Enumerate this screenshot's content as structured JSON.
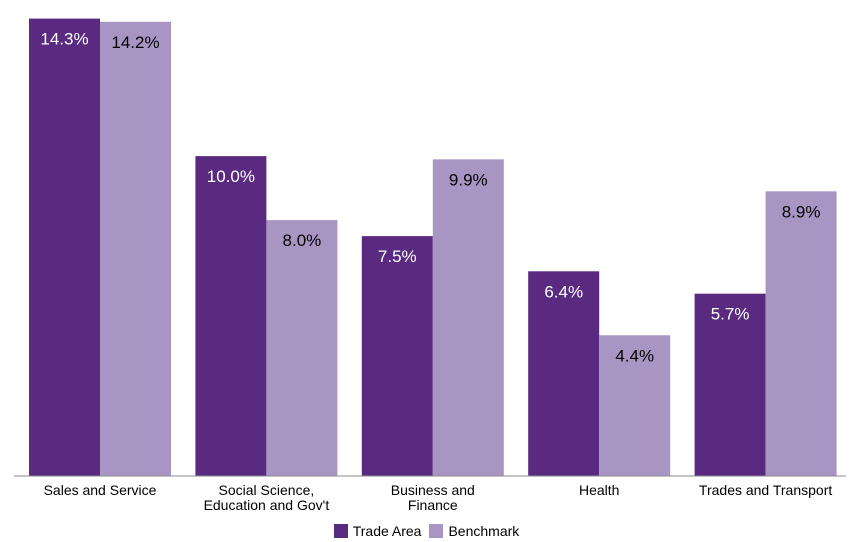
{
  "colors": {
    "trade_area": "#592a80",
    "benchmark": "#a995c4",
    "axis": "#888888"
  },
  "legend": {
    "trade_area": "Trade Area",
    "benchmark": "Benchmark"
  },
  "chart_data": {
    "type": "bar",
    "categories": [
      [
        "Sales and Service"
      ],
      [
        "Social Science,",
        "Education and Gov't"
      ],
      [
        "Business and",
        "Finance"
      ],
      [
        "Health"
      ],
      [
        "Trades and Transport"
      ]
    ],
    "series": [
      {
        "name": "Trade Area",
        "values": [
          14.3,
          10.0,
          7.5,
          6.4,
          5.7
        ],
        "labels": [
          "14.3%",
          "10.0%",
          "7.5%",
          "6.4%",
          "5.7%"
        ],
        "color": "#592a80",
        "label_color": "#ffffff"
      },
      {
        "name": "Benchmark",
        "values": [
          14.2,
          8.0,
          9.9,
          4.4,
          8.9
        ],
        "labels": [
          "14.2%",
          "8.0%",
          "9.9%",
          "4.4%",
          "8.9%"
        ],
        "color": "#a995c4",
        "label_color": "#000000"
      }
    ],
    "ylim": [
      0,
      14.6
    ],
    "grid": false,
    "legend_position": "bottom"
  }
}
